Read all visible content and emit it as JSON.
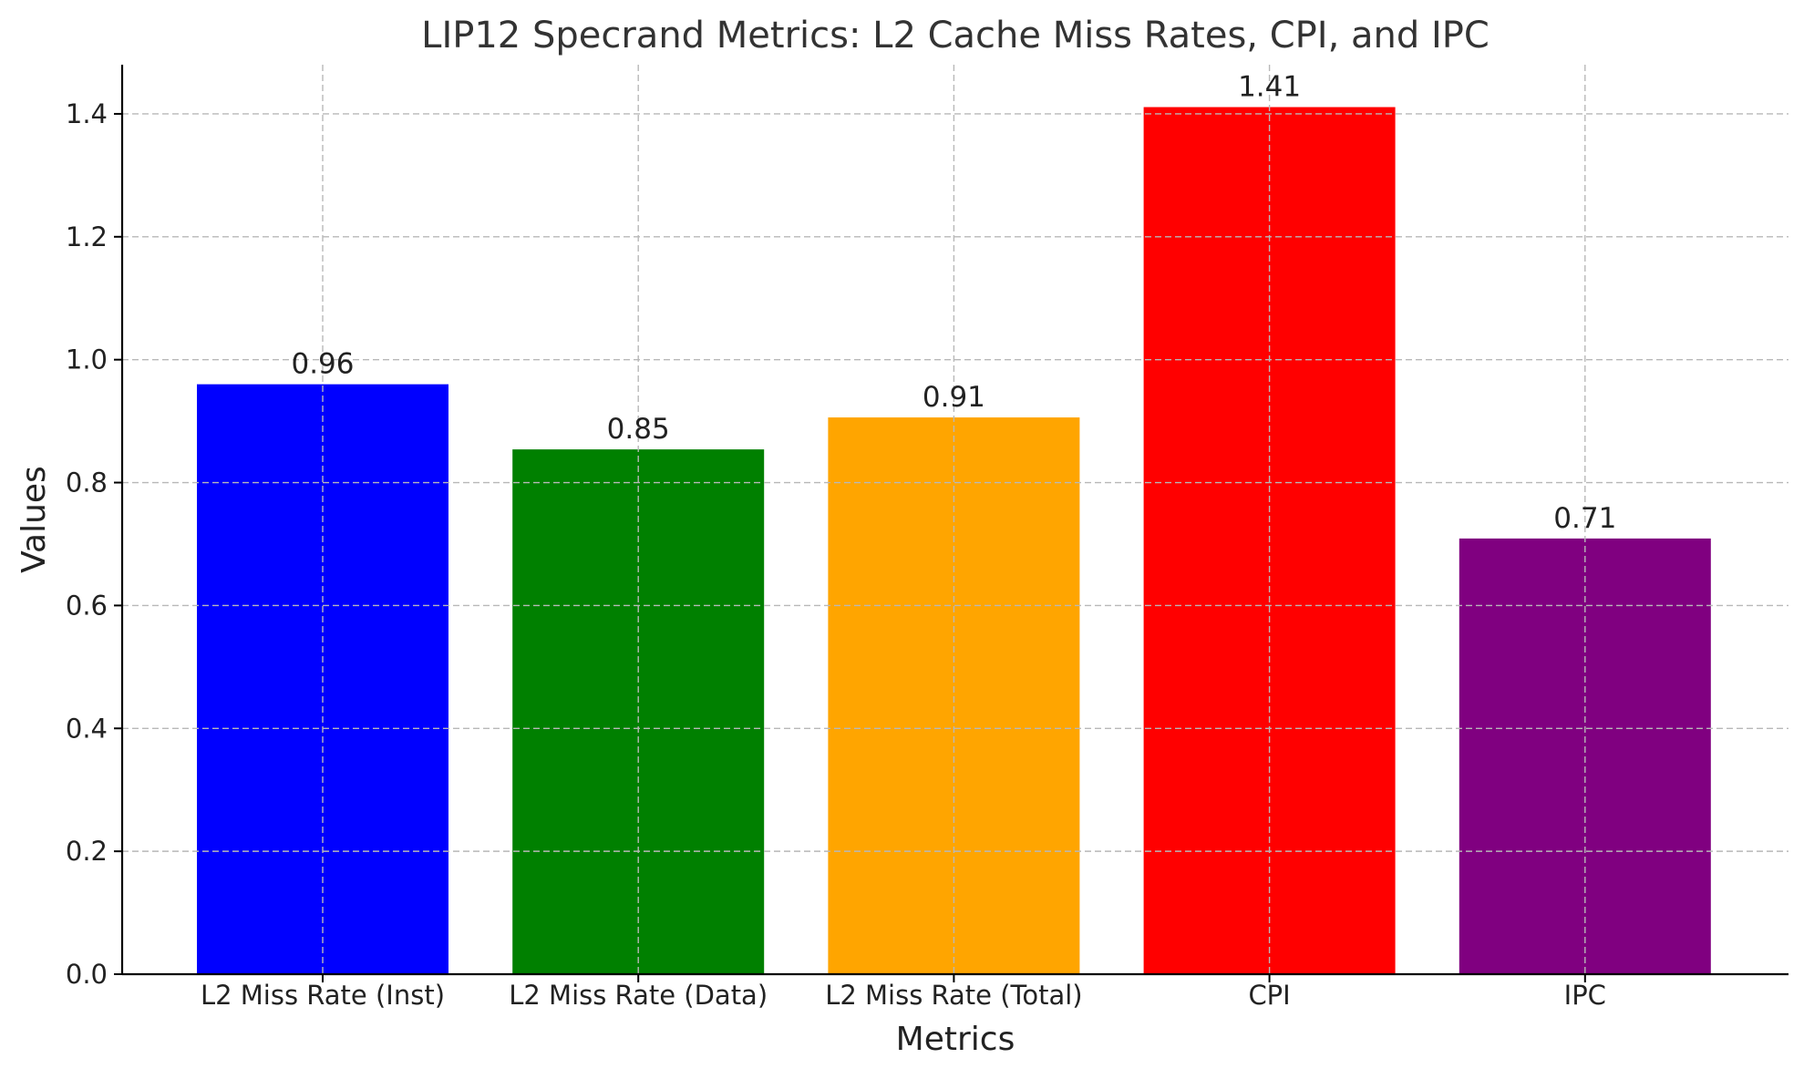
{
  "chart_data": {
    "type": "bar",
    "title": "LIP12 Specrand Metrics: L2 Cache Miss Rates, CPI, and IPC",
    "xlabel": "Metrics",
    "ylabel": "Values",
    "categories": [
      "L2 Miss Rate (Inst)",
      "L2 Miss Rate (Data)",
      "L2 Miss Rate (Total)",
      "CPI",
      "IPC"
    ],
    "values": [
      0.96,
      0.854,
      0.906,
      1.411,
      0.709
    ],
    "value_labels": [
      "0.96",
      "0.85",
      "0.91",
      "1.41",
      "0.71"
    ],
    "colors": [
      "#0000ff",
      "#008000",
      "#ffa500",
      "#ff0000",
      "#800080"
    ],
    "ylim": [
      0,
      1.48
    ],
    "yticks": [
      0.0,
      0.2,
      0.4,
      0.6,
      0.8,
      1.0,
      1.2,
      1.4
    ],
    "ytick_labels": [
      "0.0",
      "0.2",
      "0.4",
      "0.6",
      "0.8",
      "1.0",
      "1.2",
      "1.4"
    ],
    "grid": true
  }
}
